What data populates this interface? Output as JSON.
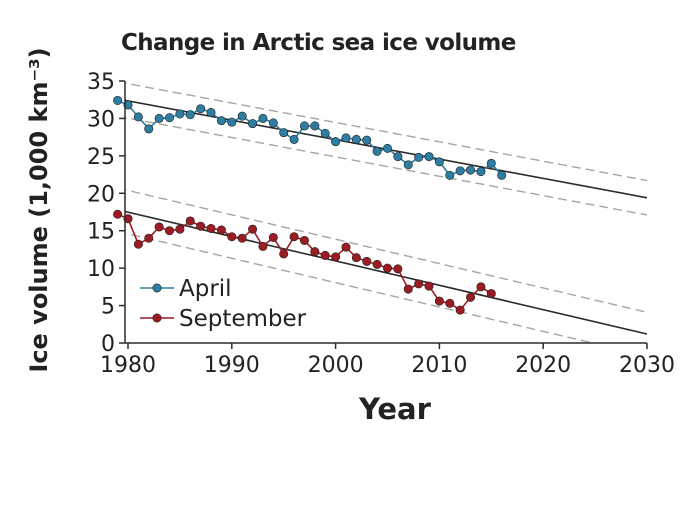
{
  "chart_data": {
    "type": "line",
    "title": "Change in Arctic sea ice volume",
    "xlabel": "Year",
    "ylabel": "Ice volume (1,000 km⁻³)",
    "xlim": [
      1980,
      2030
    ],
    "ylim": [
      0,
      35
    ],
    "xticks": [
      1980,
      1990,
      2000,
      2010,
      2020,
      2030
    ],
    "yticks": [
      0,
      5,
      10,
      15,
      20,
      25,
      30,
      35
    ],
    "grid": false,
    "legend_position": "bottom-left",
    "series": [
      {
        "name": "April",
        "color": "#2e7da3",
        "x": [
          1979,
          1980,
          1981,
          1982,
          1983,
          1984,
          1985,
          1986,
          1987,
          1988,
          1989,
          1990,
          1991,
          1992,
          1993,
          1994,
          1995,
          1996,
          1997,
          1998,
          1999,
          2000,
          2001,
          2002,
          2003,
          2004,
          2005,
          2006,
          2007,
          2008,
          2009,
          2010,
          2011,
          2012,
          2013,
          2014,
          2015,
          2016
        ],
        "y": [
          32.4,
          31.8,
          30.2,
          28.6,
          30.0,
          30.1,
          30.6,
          30.5,
          31.3,
          30.8,
          29.7,
          29.5,
          30.3,
          29.3,
          30.0,
          29.4,
          28.1,
          27.2,
          29.0,
          29.0,
          28.0,
          26.9,
          27.4,
          27.2,
          27.1,
          25.6,
          26.0,
          24.9,
          23.8,
          24.8,
          24.9,
          24.2,
          22.4,
          23.0,
          23.1,
          22.9,
          24.0,
          22.4
        ]
      },
      {
        "name": "September",
        "color": "#9c1c24",
        "x": [
          1979,
          1980,
          1981,
          1982,
          1983,
          1984,
          1985,
          1986,
          1987,
          1988,
          1989,
          1990,
          1991,
          1992,
          1993,
          1994,
          1995,
          1996,
          1997,
          1998,
          1999,
          2000,
          2001,
          2002,
          2003,
          2004,
          2005,
          2006,
          2007,
          2008,
          2009,
          2010,
          2011,
          2012,
          2013,
          2014,
          2015
        ],
        "y": [
          17.2,
          16.6,
          13.2,
          14.0,
          15.5,
          15.0,
          15.2,
          16.3,
          15.6,
          15.3,
          15.1,
          14.2,
          14.0,
          15.2,
          12.9,
          14.1,
          11.9,
          14.2,
          13.7,
          12.2,
          11.7,
          11.5,
          12.8,
          11.4,
          10.9,
          10.5,
          10.0,
          9.9,
          7.2,
          7.9,
          7.6,
          5.6,
          5.3,
          4.4,
          6.1,
          7.5,
          6.6
        ]
      }
    ],
    "trend_lines": [
      {
        "series": "April",
        "x": [
          1979,
          2030
        ],
        "y": [
          32.6,
          19.4
        ],
        "band_offset": 2.3,
        "color": "#2b2b2b",
        "band_color": "#a5a5a5"
      },
      {
        "series": "September",
        "x": [
          1979,
          2030
        ],
        "y": [
          17.8,
          1.2
        ],
        "band_offset": 2.9,
        "color": "#2b2b2b",
        "band_color": "#a5a5a5"
      }
    ]
  }
}
